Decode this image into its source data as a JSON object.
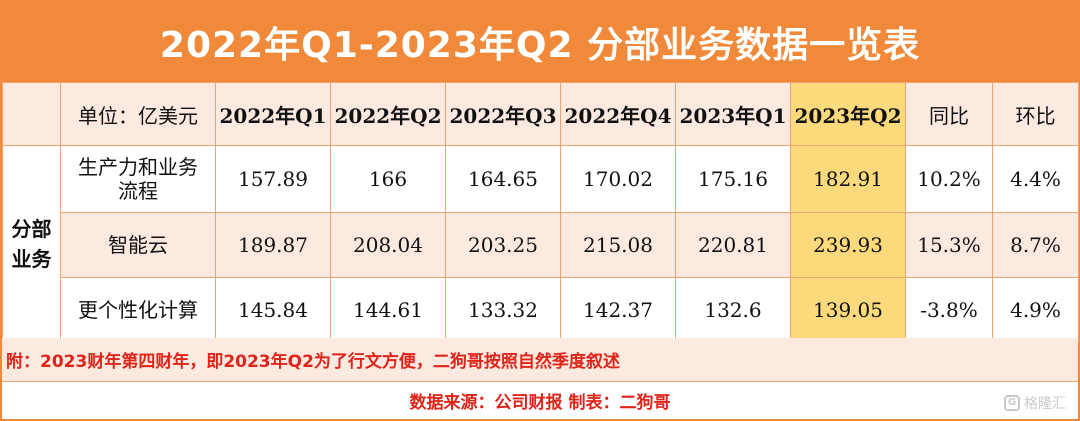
{
  "title": "2022年Q1-2023年Q2 分部业务数据一览表",
  "table": {
    "unit_label": "单位：亿美元",
    "headers": [
      "2022年Q1",
      "2022年Q2",
      "2022年Q3",
      "2022年Q4",
      "2023年Q1",
      "2023年Q2",
      "同比",
      "环比"
    ],
    "segment_group": [
      "分部",
      "业务"
    ],
    "rows": [
      {
        "name": [
          "生产力和业务",
          "流程"
        ],
        "values": [
          "157.89",
          "166",
          "164.65",
          "170.02",
          "175.16",
          "182.91",
          "10.2%",
          "4.4%"
        ]
      },
      {
        "name": [
          "智能云"
        ],
        "values": [
          "189.87",
          "208.04",
          "203.25",
          "215.08",
          "220.81",
          "239.93",
          "15.3%",
          "8.7%"
        ]
      },
      {
        "name": [
          "更个性化计算"
        ],
        "values": [
          "145.84",
          "144.61",
          "133.32",
          "142.37",
          "132.6",
          "139.05",
          "-3.8%",
          "4.9%"
        ]
      }
    ]
  },
  "note": "附：2023财年第四财年，即2023年Q2为了行文方便，二狗哥按照自然季度叙述",
  "source": "数据来源：公司财报   制表：二狗哥",
  "watermark": {
    "icon": "G",
    "text": "格隆汇"
  },
  "colors": {
    "accent": "#f08a3a",
    "highlight": "#fcd97a",
    "highlight_text": "#e0241a",
    "band": "#fce9e0"
  }
}
